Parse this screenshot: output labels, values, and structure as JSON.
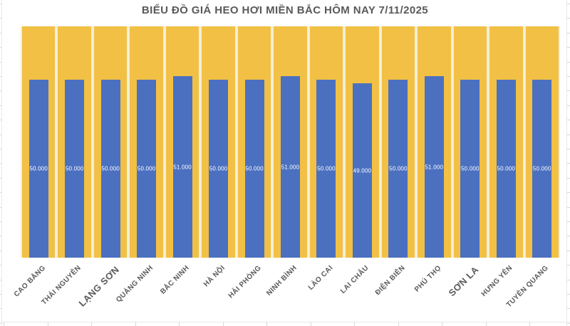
{
  "chart_data": {
    "type": "bar",
    "title": "BIỂU ĐỒ GIÁ HEO HƠI MIỀN BẮC HÔM NAY 7/11/2025",
    "categories": [
      "CAO BẰNG",
      "THÁI NGUYÊN",
      "LẠNG SƠN",
      "QUẢNG NINH",
      "BẮC NINH",
      "HÀ NỘI",
      "HẢI PHÒNG",
      "NINH BÌNH",
      "LÀO CAI",
      "LAI CHÂU",
      "ĐIỆN BIÊN",
      "PHÚ THỌ",
      "SƠN LA",
      "HƯNG YÊN",
      "TUYÊN QUANG"
    ],
    "values": [
      50000,
      50000,
      50000,
      50000,
      51000,
      50000,
      50000,
      51000,
      50000,
      49000,
      50000,
      51000,
      50000,
      50000,
      50000
    ],
    "data_labels": [
      "50.000",
      "50.000",
      "50.000",
      "50.000",
      "51.000",
      "50.000",
      "50.000",
      "51.000",
      "50.000",
      "49.000",
      "50.000",
      "51.000",
      "50.000",
      "50.000",
      "50.000"
    ],
    "ylim": [
      0,
      65000
    ],
    "grid": false,
    "legend": "none",
    "xlabel": "",
    "ylabel": "",
    "bar_color": "#4b70c0",
    "background_bar_color": "#f2c044",
    "title_color": "#595959",
    "category_label_color": "#595959",
    "data_label_color": "#ffffff",
    "emphasized_category_indexes": [
      2,
      12
    ]
  },
  "colors": {
    "page_background": "#ffffff",
    "plot_gap": "#f3eed8",
    "spreadsheet_gridline": "#e9e9e9"
  }
}
